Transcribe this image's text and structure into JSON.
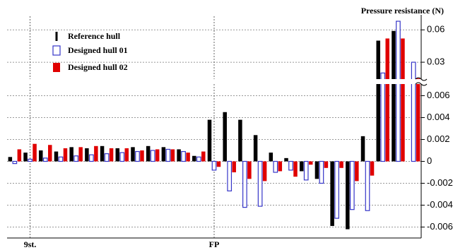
{
  "chart_data": {
    "type": "bar",
    "y_axis_label": "Pressure resistance (N)",
    "categories": [
      null,
      "9st.",
      null,
      null,
      null,
      null,
      null,
      null,
      null,
      null,
      null,
      null,
      null,
      "FP",
      null,
      null,
      null,
      null,
      null,
      null,
      null,
      null,
      null,
      null,
      null,
      null,
      null
    ],
    "series": [
      {
        "name": "Reference hull",
        "color": "#000000",
        "style": "filled",
        "values": [
          0.0004,
          0.0008,
          0.001,
          0.0009,
          0.0013,
          0.0012,
          0.0014,
          0.0012,
          0.0013,
          0.0014,
          0.0013,
          0.0011,
          0.0005,
          0.0038,
          0.0045,
          0.0038,
          0.0024,
          0.0008,
          0.0003,
          -0.0009,
          -0.0016,
          -0.0059,
          -0.0062,
          0.0023,
          0.05,
          0.059,
          null
        ]
      },
      {
        "name": "Designed hull 01",
        "color": "#3535c8",
        "style": "hollow",
        "values": [
          -0.0002,
          0.0002,
          0.0003,
          0.0004,
          0.0005,
          0.0006,
          0.0007,
          0.0008,
          0.0009,
          0.001,
          0.0011,
          0.0009,
          0.0004,
          -0.0008,
          -0.0027,
          -0.0042,
          -0.0041,
          -0.001,
          -0.0008,
          -0.0017,
          -0.002,
          -0.0052,
          -0.0044,
          -0.0045,
          0.02,
          0.068,
          0.03
        ]
      },
      {
        "name": "Designed hull 02",
        "color": "#e00000",
        "style": "filled",
        "values": [
          0.0011,
          0.0016,
          0.0015,
          0.0012,
          0.0013,
          0.0014,
          0.0012,
          0.0012,
          0.001,
          0.0011,
          0.0011,
          0.0008,
          0.0009,
          -0.0005,
          -0.001,
          -0.0016,
          -0.0018,
          -0.0009,
          -0.0014,
          -0.0003,
          -0.0006,
          -0.0006,
          -0.0018,
          -0.0013,
          0.052,
          0.052,
          0.015
        ]
      }
    ],
    "ylim": [
      -0.007,
      0.07
    ],
    "axis_break": [
      0.007,
      0.015
    ],
    "yticks": [
      -0.006,
      -0.004,
      -0.002,
      0,
      0.002,
      0.004,
      0.006,
      0.03,
      0.06
    ],
    "grid": true,
    "legend": "upper left"
  }
}
